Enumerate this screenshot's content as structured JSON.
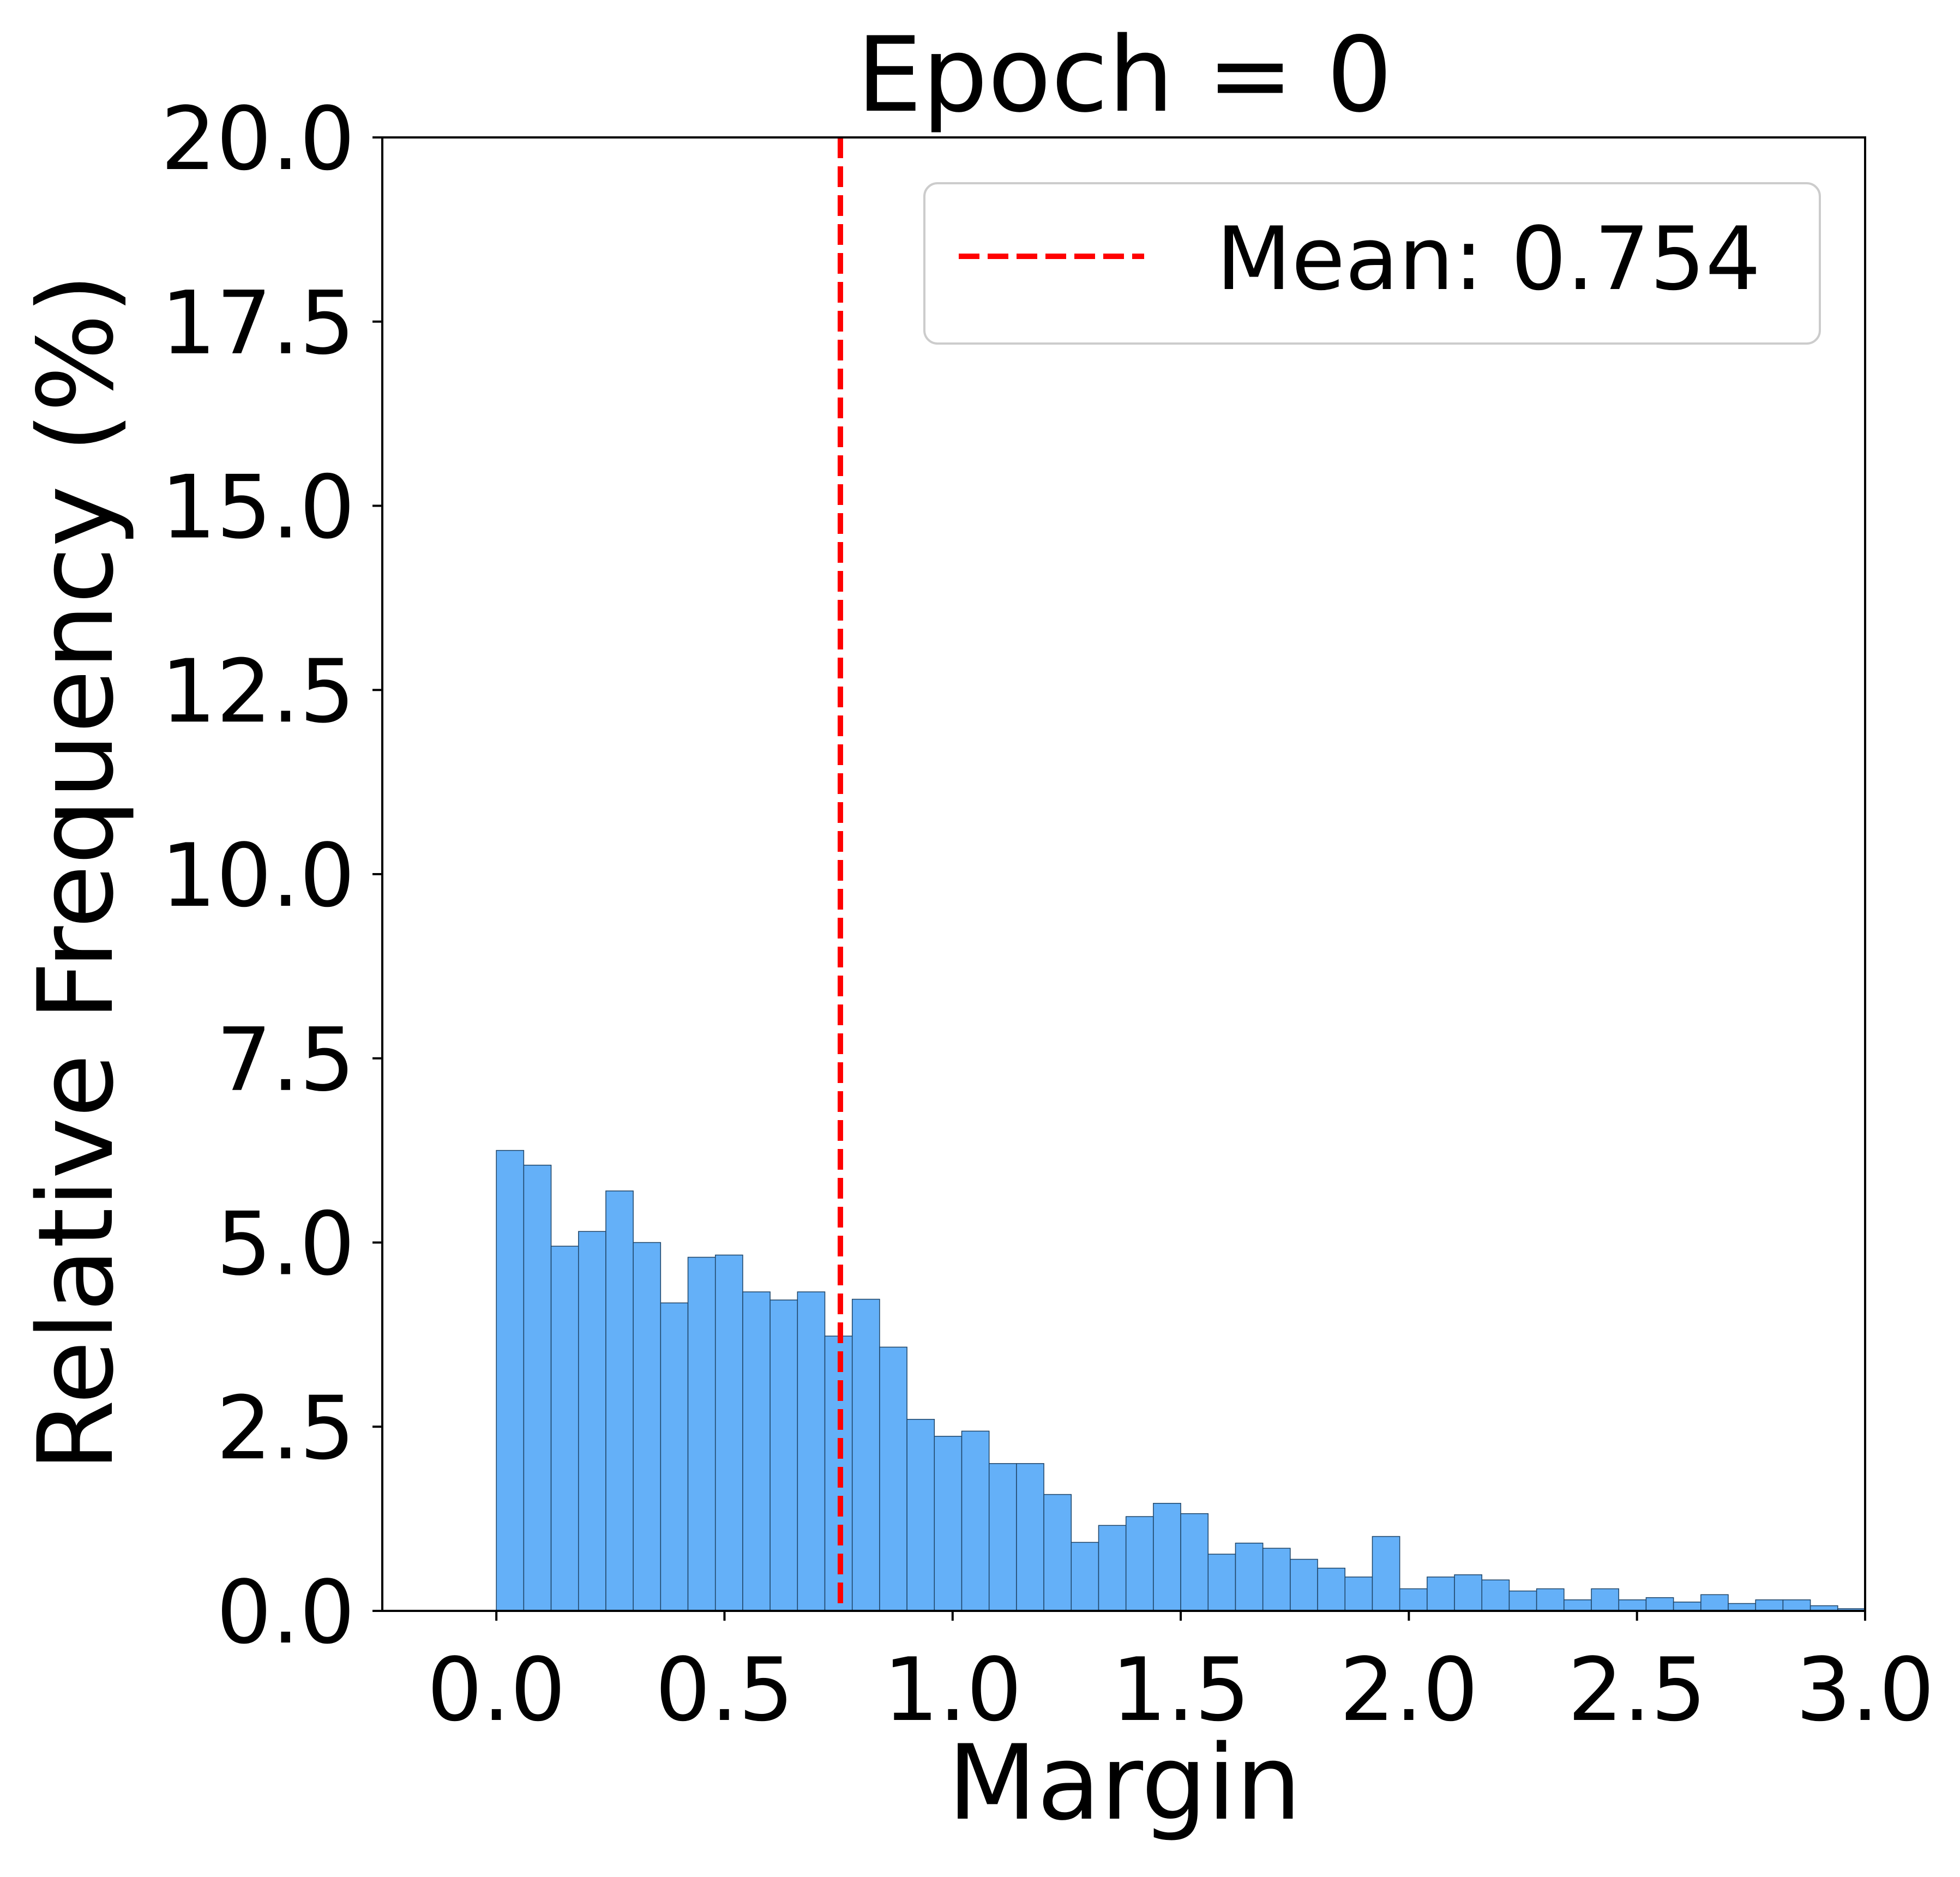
{
  "chart_data": {
    "type": "bar",
    "subtype": "histogram",
    "title": "Epoch = 0",
    "xlabel": "Margin",
    "ylabel": "Relative Frequency (%)",
    "xlim": [
      -0.25,
      3.0
    ],
    "ylim": [
      0,
      20
    ],
    "xticks": [
      "0.0",
      "0.5",
      "1.0",
      "1.5",
      "2.0",
      "2.5",
      "3.0"
    ],
    "xtick_values": [
      0.0,
      0.5,
      1.0,
      1.5,
      2.0,
      2.5,
      3.0
    ],
    "yticks": [
      "0.0",
      "2.5",
      "5.0",
      "7.5",
      "10.0",
      "12.5",
      "15.0",
      "17.5",
      "20.0"
    ],
    "ytick_values": [
      0,
      2.5,
      5,
      7.5,
      10,
      12.5,
      15,
      17.5,
      20
    ],
    "grid": false,
    "legend_position": "top-right",
    "bar_color": "#64b0f8",
    "bar_edge_color": "#1f4466",
    "bin_width": 0.06,
    "bin_edges_start": 0.0,
    "values": [
      6.25,
      6.05,
      4.95,
      5.15,
      5.7,
      5.0,
      4.18,
      4.8,
      4.83,
      4.33,
      4.22,
      4.33,
      3.73,
      4.23,
      3.58,
      2.6,
      2.37,
      2.44,
      2.0,
      2.0,
      1.58,
      0.93,
      1.16,
      1.28,
      1.46,
      1.32,
      0.77,
      0.92,
      0.85,
      0.7,
      0.58,
      0.46,
      1.01,
      0.3,
      0.46,
      0.49,
      0.42,
      0.27,
      0.3,
      0.15,
      0.3,
      0.15,
      0.18,
      0.12,
      0.22,
      0.1,
      0.15,
      0.15,
      0.07,
      0.03
    ],
    "mean_line": {
      "x": 0.754,
      "label": "Mean: 0.754",
      "color": "#ff0000",
      "style": "dashed"
    }
  }
}
